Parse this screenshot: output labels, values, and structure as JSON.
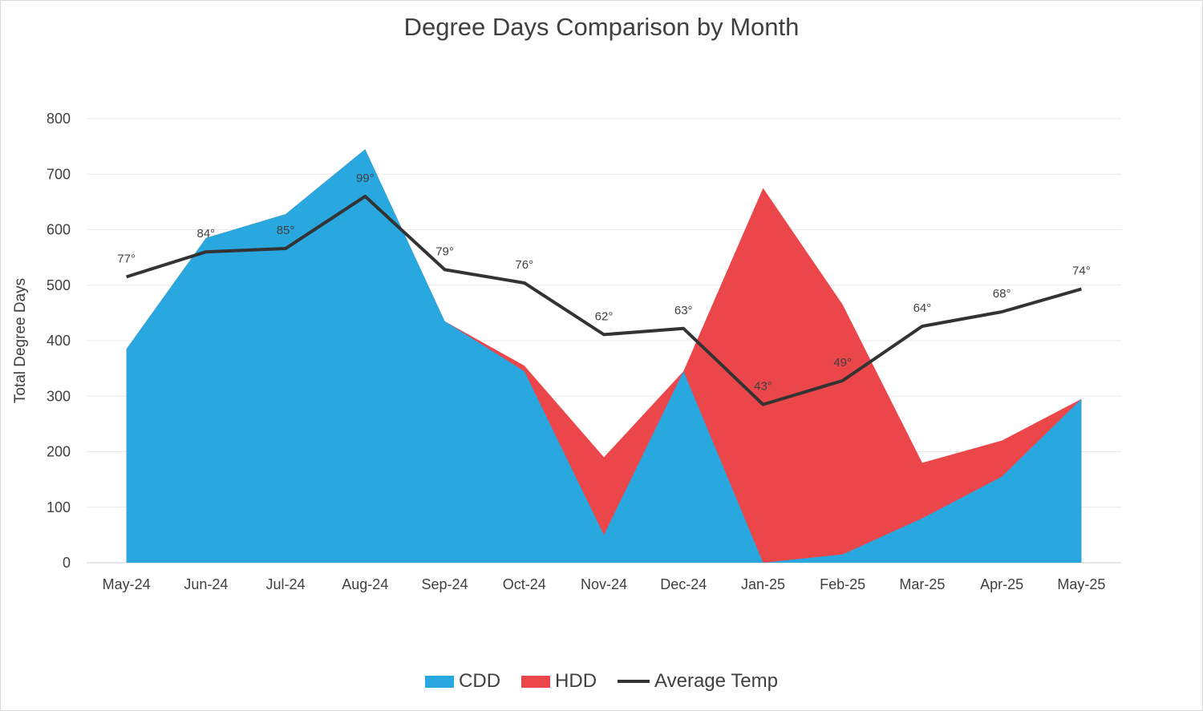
{
  "chart_data": {
    "type": "area",
    "title": "Degree Days Comparison by Month",
    "ylabel": "Total Degree Days",
    "xlabel": "",
    "ylim": [
      0,
      800
    ],
    "yticks": [
      0,
      100,
      200,
      300,
      400,
      500,
      600,
      700,
      800
    ],
    "grid": true,
    "legend": "bottom",
    "categories": [
      "May-24",
      "Jun-24",
      "Jul-24",
      "Aug-24",
      "Sep-24",
      "Oct-24",
      "Nov-24",
      "Dec-24",
      "Jan-25",
      "Feb-25",
      "Mar-25",
      "Apr-25",
      "May-25"
    ],
    "series": [
      {
        "name": "CDD",
        "kind": "stacked-area",
        "color": "#29a8e0",
        "values": [
          385,
          585,
          628,
          745,
          435,
          345,
          50,
          345,
          0,
          15,
          80,
          155,
          295
        ]
      },
      {
        "name": "HDD",
        "kind": "stacked-area",
        "color": "#eb4649",
        "values": [
          0,
          0,
          0,
          0,
          0,
          10,
          140,
          0,
          675,
          450,
          100,
          65,
          0
        ]
      },
      {
        "name": "Average Temp",
        "kind": "line",
        "color": "#333333",
        "values": [
          515,
          560,
          566,
          660,
          528,
          504,
          411,
          422,
          285,
          328,
          426,
          452,
          493
        ],
        "labels": [
          "77°",
          "84°",
          "85°",
          "99°",
          "79°",
          "76°",
          "62°",
          "63°",
          "43°",
          "49°",
          "64°",
          "68°",
          "74°"
        ]
      }
    ]
  }
}
